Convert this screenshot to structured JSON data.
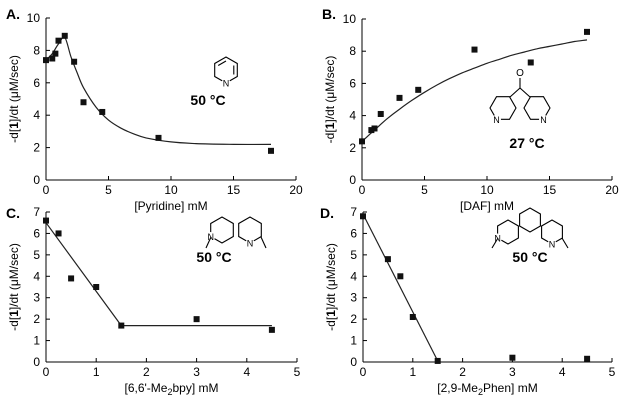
{
  "chart_data": [
    {
      "panel": "A.",
      "type": "scatter",
      "temperature": "50 °C",
      "ylabel_pre": "-d[",
      "ylabel_bold": "1",
      "ylabel_post": "]/dt (μM/sec)",
      "xlabel": "[Pyridine] mM",
      "xlim": [
        0,
        20
      ],
      "ylim": [
        0,
        10
      ],
      "xticks": [
        0,
        5,
        10,
        15,
        20
      ],
      "yticks": [
        0,
        2,
        4,
        6,
        8,
        10
      ],
      "points": [
        [
          0,
          7.4
        ],
        [
          0.5,
          7.5
        ],
        [
          0.75,
          7.8
        ],
        [
          1.0,
          8.6
        ],
        [
          1.5,
          8.9
        ],
        [
          2.25,
          7.3
        ],
        [
          3.0,
          4.8
        ],
        [
          4.5,
          4.2
        ],
        [
          9.0,
          2.6
        ],
        [
          18.0,
          1.8
        ]
      ],
      "fit": "curve",
      "fit_points": [
        [
          0,
          7.4
        ],
        [
          0.5,
          7.8
        ],
        [
          1.0,
          8.4
        ],
        [
          1.5,
          8.8
        ],
        [
          2.0,
          7.6
        ],
        [
          2.5,
          6.6
        ],
        [
          3.0,
          5.7
        ],
        [
          4.0,
          4.5
        ],
        [
          5.0,
          3.7
        ],
        [
          6.0,
          3.2
        ],
        [
          7.0,
          2.85
        ],
        [
          8.0,
          2.6
        ],
        [
          10.0,
          2.35
        ],
        [
          12.0,
          2.25
        ],
        [
          15.0,
          2.2
        ],
        [
          18.0,
          2.2
        ]
      ],
      "structure": "pyridine"
    },
    {
      "panel": "B.",
      "type": "scatter",
      "temperature": "27 °C",
      "ylabel_pre": "-d[",
      "ylabel_bold": "1",
      "ylabel_post": "]/dt (μM/sec)",
      "xlabel": "[DAF] mM",
      "xlim": [
        0,
        20
      ],
      "ylim": [
        0,
        10
      ],
      "xticks": [
        0,
        5,
        10,
        15,
        20
      ],
      "yticks": [
        0,
        2,
        4,
        6,
        8,
        10
      ],
      "points": [
        [
          0,
          2.4
        ],
        [
          0.75,
          3.1
        ],
        [
          1.0,
          3.2
        ],
        [
          1.5,
          4.1
        ],
        [
          3.0,
          5.1
        ],
        [
          4.5,
          5.6
        ],
        [
          9.0,
          8.1
        ],
        [
          13.5,
          7.3
        ],
        [
          18.0,
          9.2
        ]
      ],
      "fit": "curve",
      "fit_points": [
        [
          0,
          2.4
        ],
        [
          1,
          3.1
        ],
        [
          2,
          3.8
        ],
        [
          3,
          4.4
        ],
        [
          4,
          4.95
        ],
        [
          5,
          5.45
        ],
        [
          6,
          5.9
        ],
        [
          7,
          6.3
        ],
        [
          8,
          6.65
        ],
        [
          9,
          6.95
        ],
        [
          10,
          7.25
        ],
        [
          11,
          7.5
        ],
        [
          12,
          7.75
        ],
        [
          13,
          7.95
        ],
        [
          14,
          8.15
        ],
        [
          15,
          8.3
        ],
        [
          16,
          8.45
        ],
        [
          17,
          8.6
        ],
        [
          18,
          8.7
        ]
      ],
      "structure": "daf"
    },
    {
      "panel": "C.",
      "type": "scatter",
      "temperature": "50 °C",
      "ylabel_pre": "-d[",
      "ylabel_bold": "1",
      "ylabel_post": "]/dt (μM/sec)",
      "xlabel_pre": "[6,6'-Me",
      "xlabel_sub": "2",
      "xlabel_post": "bpy] mM",
      "xlim": [
        0,
        5
      ],
      "ylim": [
        0,
        7
      ],
      "xticks": [
        0,
        1,
        2,
        3,
        4,
        5
      ],
      "yticks": [
        0,
        1,
        2,
        3,
        4,
        5,
        6,
        7
      ],
      "points": [
        [
          0,
          6.6
        ],
        [
          0.25,
          6.0
        ],
        [
          0.5,
          3.9
        ],
        [
          1.0,
          3.5
        ],
        [
          1.5,
          1.7
        ],
        [
          3.0,
          2.0
        ],
        [
          4.5,
          1.5
        ]
      ],
      "fit": "linear",
      "fit_points": [
        [
          0,
          6.5
        ],
        [
          1.5,
          1.7
        ],
        [
          4.5,
          1.7
        ]
      ],
      "structure": "bpy"
    },
    {
      "panel": "D.",
      "type": "scatter",
      "temperature": "50 °C",
      "ylabel_pre": "-d[",
      "ylabel_bold": "1",
      "ylabel_post": "]/dt (μM/sec)",
      "xlabel_pre": "[2,9-Me",
      "xlabel_sub": "2",
      "xlabel_post": "Phen] mM",
      "xlim": [
        0,
        5
      ],
      "ylim": [
        0,
        7
      ],
      "xticks": [
        0,
        1,
        2,
        3,
        4,
        5
      ],
      "yticks": [
        0,
        1,
        2,
        3,
        4,
        5,
        6,
        7
      ],
      "points": [
        [
          0,
          6.8
        ],
        [
          0.5,
          4.8
        ],
        [
          0.75,
          4.0
        ],
        [
          1.0,
          2.1
        ],
        [
          1.5,
          0.05
        ],
        [
          3.0,
          0.2
        ],
        [
          4.5,
          0.15
        ]
      ],
      "fit": "linear",
      "fit_points": [
        [
          0,
          6.9
        ],
        [
          1.5,
          0.05
        ]
      ],
      "structure": "phen"
    }
  ]
}
